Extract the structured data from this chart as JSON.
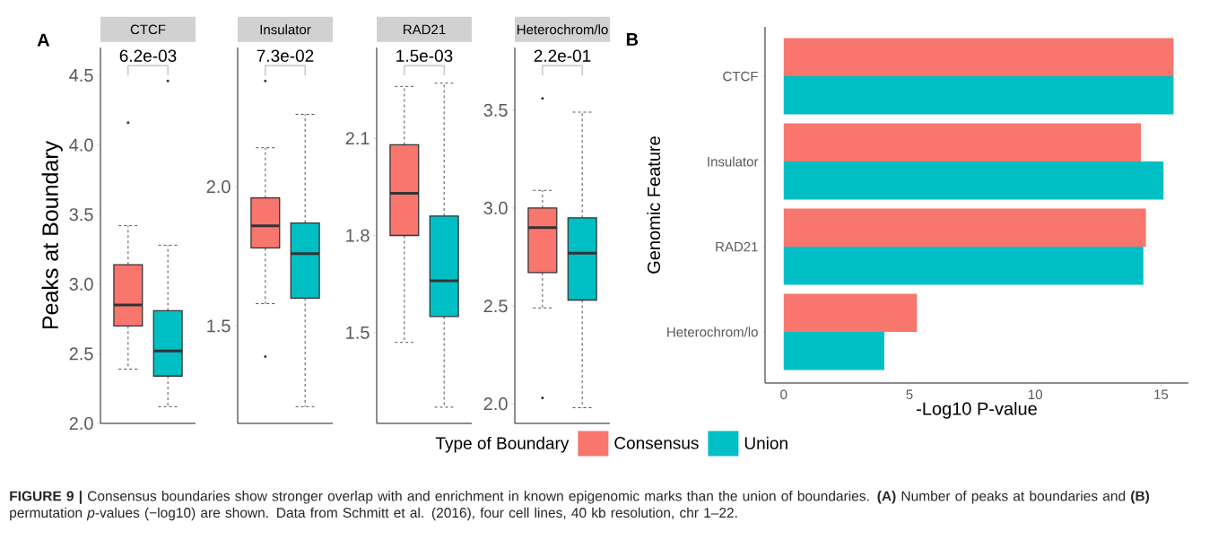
{
  "chart_data": [
    {
      "type": "box",
      "title": "CTCF",
      "ylabel": "Peaks at Boundary",
      "categories": [
        null
      ],
      "ylim": [
        2.0,
        4.7
      ],
      "yticks": [
        {
          "value": 2,
          "label": "2.0"
        },
        2.5,
        {
          "value": 3,
          "label": "3.0"
        },
        3.5,
        {
          "value": 4,
          "label": "4.0"
        },
        4.5
      ],
      "tick_labels": "y",
      "line_style": "dashed",
      "series": [
        {
          "color": "#f8766d",
          "boxes": [
            {
              "low": 2.39,
              "q1": 2.7,
              "median": 2.85,
              "q3": 3.14,
              "high": 3.42,
              "outliers": [
                4.16
              ]
            }
          ]
        },
        {
          "color": "#00bfc4",
          "boxes": [
            {
              "low": 2.12,
              "q1": 2.34,
              "median": 2.52,
              "q3": 2.81,
              "high": 3.28,
              "outliers": [
                4.46
              ]
            }
          ]
        }
      ],
      "annotations": [
        "A",
        "6.2e-03"
      ]
    },
    {
      "type": "box",
      "title": "Insulator",
      "categories": [
        null
      ],
      "ylim": [
        1.15,
        2.5
      ],
      "yticks": [
        1.5,
        {
          "value": 2,
          "label": "2.0"
        }
      ],
      "tick_labels": "y",
      "line_style": "dashed",
      "series": [
        {
          "color": "#f8766d",
          "boxes": [
            {
              "low": 1.58,
              "q1": 1.78,
              "median": 1.86,
              "q3": 1.96,
              "high": 2.14,
              "outliers": [
                1.39,
                2.38
              ]
            }
          ]
        },
        {
          "color": "#00bfc4",
          "boxes": [
            {
              "low": 1.21,
              "q1": 1.6,
              "median": 1.76,
              "q3": 1.87,
              "high": 2.26
            }
          ]
        }
      ],
      "annotations": [
        "7.3e-02"
      ]
    },
    {
      "type": "box",
      "title": "RAD21",
      "categories": [
        null
      ],
      "ylim": [
        1.22,
        2.38
      ],
      "yticks": [
        1.5,
        1.8,
        2.1
      ],
      "tick_labels": "y",
      "line_style": "dashed",
      "series": [
        {
          "color": "#f8766d",
          "boxes": [
            {
              "low": 1.47,
              "q1": 1.8,
              "median": 1.93,
              "q3": 2.08,
              "high": 2.26
            }
          ]
        },
        {
          "color": "#00bfc4",
          "boxes": [
            {
              "low": 1.27,
              "q1": 1.55,
              "median": 1.66,
              "q3": 1.86,
              "high": 2.27
            }
          ]
        }
      ],
      "annotations": [
        "1.5e-03"
      ]
    },
    {
      "type": "box",
      "title": "Heterochrom/lo",
      "categories": [
        null
      ],
      "ylim": [
        1.9,
        3.82
      ],
      "yticks": [
        {
          "value": 2,
          "label": "2.0"
        },
        2.5,
        {
          "value": 3,
          "label": "3.0"
        },
        3.5
      ],
      "tick_labels": "y",
      "line_style": "dashed",
      "series": [
        {
          "color": "#f8766d",
          "boxes": [
            {
              "low": 2.49,
              "q1": 2.67,
              "median": 2.9,
              "q3": 3.0,
              "high": 3.09,
              "outliers": [
                2.03,
                3.56
              ]
            }
          ]
        },
        {
          "color": "#00bfc4",
          "boxes": [
            {
              "low": 1.98,
              "q1": 2.53,
              "median": 2.77,
              "q3": 2.95,
              "high": 3.49
            }
          ]
        }
      ],
      "annotations": [
        "2.2e-01"
      ]
    },
    {
      "type": "bar",
      "orientation": "horizontal",
      "categories": [
        "CTCF",
        "Insulator",
        "RAD21",
        "Heterochrom/lo"
      ],
      "xlabel": "-Log10 P-value",
      "ylabel": "Genomic Feature",
      "xlim": [
        -0.74,
        16.09
      ],
      "xticks": [
        0,
        5,
        10,
        15
      ],
      "legend": "bottom",
      "legend_title": "Type of Boundary",
      "series": [
        {
          "name": "Consensus",
          "color": "#f8766d",
          "values": [
            15.5,
            14.2,
            14.4,
            5.3
          ]
        },
        {
          "name": "Union",
          "color": "#00bfc4",
          "values": [
            15.5,
            15.1,
            14.3,
            4.0
          ]
        }
      ],
      "annotations": [
        "B",
        "**FIGURE 9 |** Consensus boundaries show stronger overlap with and enrichment in known epigenomic marks than the union of boundaries. **(A)** Number of peaks at boundaries and **(B)** permutation *p*-values (−log10) are shown. Data from Schmitt et al. (2016), four cell lines, 40 kb resolution, chr 1–22."
      ]
    }
  ]
}
